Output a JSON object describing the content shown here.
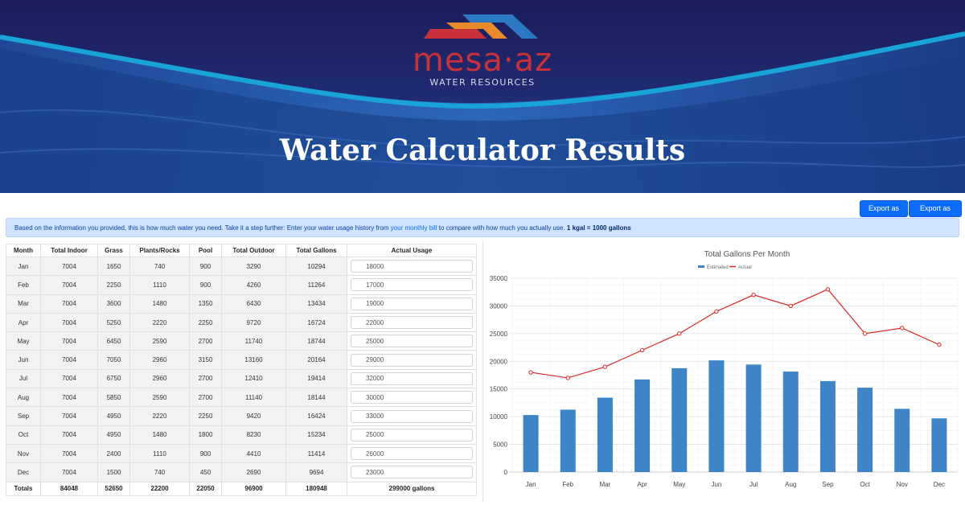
{
  "header": {
    "logo_text": "mesa·az",
    "logo_subtitle": "WATER RESOURCES",
    "title": "Water Calculator Results",
    "colors": {
      "banner": "#1c1d5a",
      "logo_red": "#c8313a",
      "logo_orange": "#e8892b",
      "logo_blue": "#2b78c4",
      "wave": "#1aa3d6"
    }
  },
  "toolbar": {
    "export_pdf_label": "Export as PDF",
    "export_image_label": "Export as Image"
  },
  "info": {
    "text_before": "Based on the information you provided, this is how much water you need. Take it a step further: Enter your water usage history from ",
    "link_text": "your monthly bill",
    "text_after": " to compare with how much you actually use. ",
    "bold_text": "1 kgal = 1000 gallons"
  },
  "table": {
    "headers": [
      "Month",
      "Total Indoor",
      "Grass",
      "Plants/Rocks",
      "Pool",
      "Total Outdoor",
      "Total Gallons",
      "Actual Usage"
    ],
    "rows": [
      {
        "month": "Jan",
        "indoor": "7004",
        "grass": "1650",
        "plants": "740",
        "pool": "900",
        "outdoor": "3290",
        "total": "10294",
        "actual": "18000"
      },
      {
        "month": "Feb",
        "indoor": "7004",
        "grass": "2250",
        "plants": "1110",
        "pool": "900",
        "outdoor": "4260",
        "total": "11264",
        "actual": "17000"
      },
      {
        "month": "Mar",
        "indoor": "7004",
        "grass": "3600",
        "plants": "1480",
        "pool": "1350",
        "outdoor": "6430",
        "total": "13434",
        "actual": "19000"
      },
      {
        "month": "Apr",
        "indoor": "7004",
        "grass": "5250",
        "plants": "2220",
        "pool": "2250",
        "outdoor": "9720",
        "total": "16724",
        "actual": "22000"
      },
      {
        "month": "May",
        "indoor": "7004",
        "grass": "6450",
        "plants": "2590",
        "pool": "2700",
        "outdoor": "11740",
        "total": "18744",
        "actual": "25000"
      },
      {
        "month": "Jun",
        "indoor": "7004",
        "grass": "7050",
        "plants": "2960",
        "pool": "3150",
        "outdoor": "13160",
        "total": "20164",
        "actual": "29000"
      },
      {
        "month": "Jul",
        "indoor": "7004",
        "grass": "6750",
        "plants": "2960",
        "pool": "2700",
        "outdoor": "12410",
        "total": "19414",
        "actual": "32000"
      },
      {
        "month": "Aug",
        "indoor": "7004",
        "grass": "5850",
        "plants": "2590",
        "pool": "2700",
        "outdoor": "11140",
        "total": "18144",
        "actual": "30000"
      },
      {
        "month": "Sep",
        "indoor": "7004",
        "grass": "4950",
        "plants": "2220",
        "pool": "2250",
        "outdoor": "9420",
        "total": "16424",
        "actual": "33000"
      },
      {
        "month": "Oct",
        "indoor": "7004",
        "grass": "4950",
        "plants": "1480",
        "pool": "1800",
        "outdoor": "8230",
        "total": "15234",
        "actual": "25000"
      },
      {
        "month": "Nov",
        "indoor": "7004",
        "grass": "2400",
        "plants": "1110",
        "pool": "900",
        "outdoor": "4410",
        "total": "11414",
        "actual": "26000"
      },
      {
        "month": "Dec",
        "indoor": "7004",
        "grass": "1500",
        "plants": "740",
        "pool": "450",
        "outdoor": "2690",
        "total": "9694",
        "actual": "23000"
      }
    ],
    "totals": {
      "label": "Totals",
      "indoor": "84048",
      "grass": "52650",
      "plants": "22200",
      "pool": "22050",
      "outdoor": "96900",
      "total": "180948",
      "actual": "299000 gallons"
    }
  },
  "chart_data": {
    "type": "bar",
    "title": "Total Gallons Per Month",
    "categories": [
      "Jan",
      "Feb",
      "Mar",
      "Apr",
      "May",
      "Jun",
      "Jul",
      "Aug",
      "Sep",
      "Oct",
      "Nov",
      "Dec"
    ],
    "series": [
      {
        "name": "Estimated",
        "type": "bar",
        "color": "#3d85c6",
        "values": [
          10294,
          11264,
          13434,
          16724,
          18744,
          20164,
          19414,
          18144,
          16424,
          15234,
          11414,
          9694
        ]
      },
      {
        "name": "Actual",
        "type": "line",
        "color": "#e02424",
        "values": [
          18000,
          17000,
          19000,
          22000,
          25000,
          29000,
          32000,
          30000,
          33000,
          25000,
          26000,
          23000
        ]
      }
    ],
    "yticks": [
      0,
      5000,
      10000,
      15000,
      20000,
      25000,
      30000,
      35000
    ],
    "ylim": [
      0,
      35000
    ],
    "grid": true,
    "legend_position": "top"
  }
}
